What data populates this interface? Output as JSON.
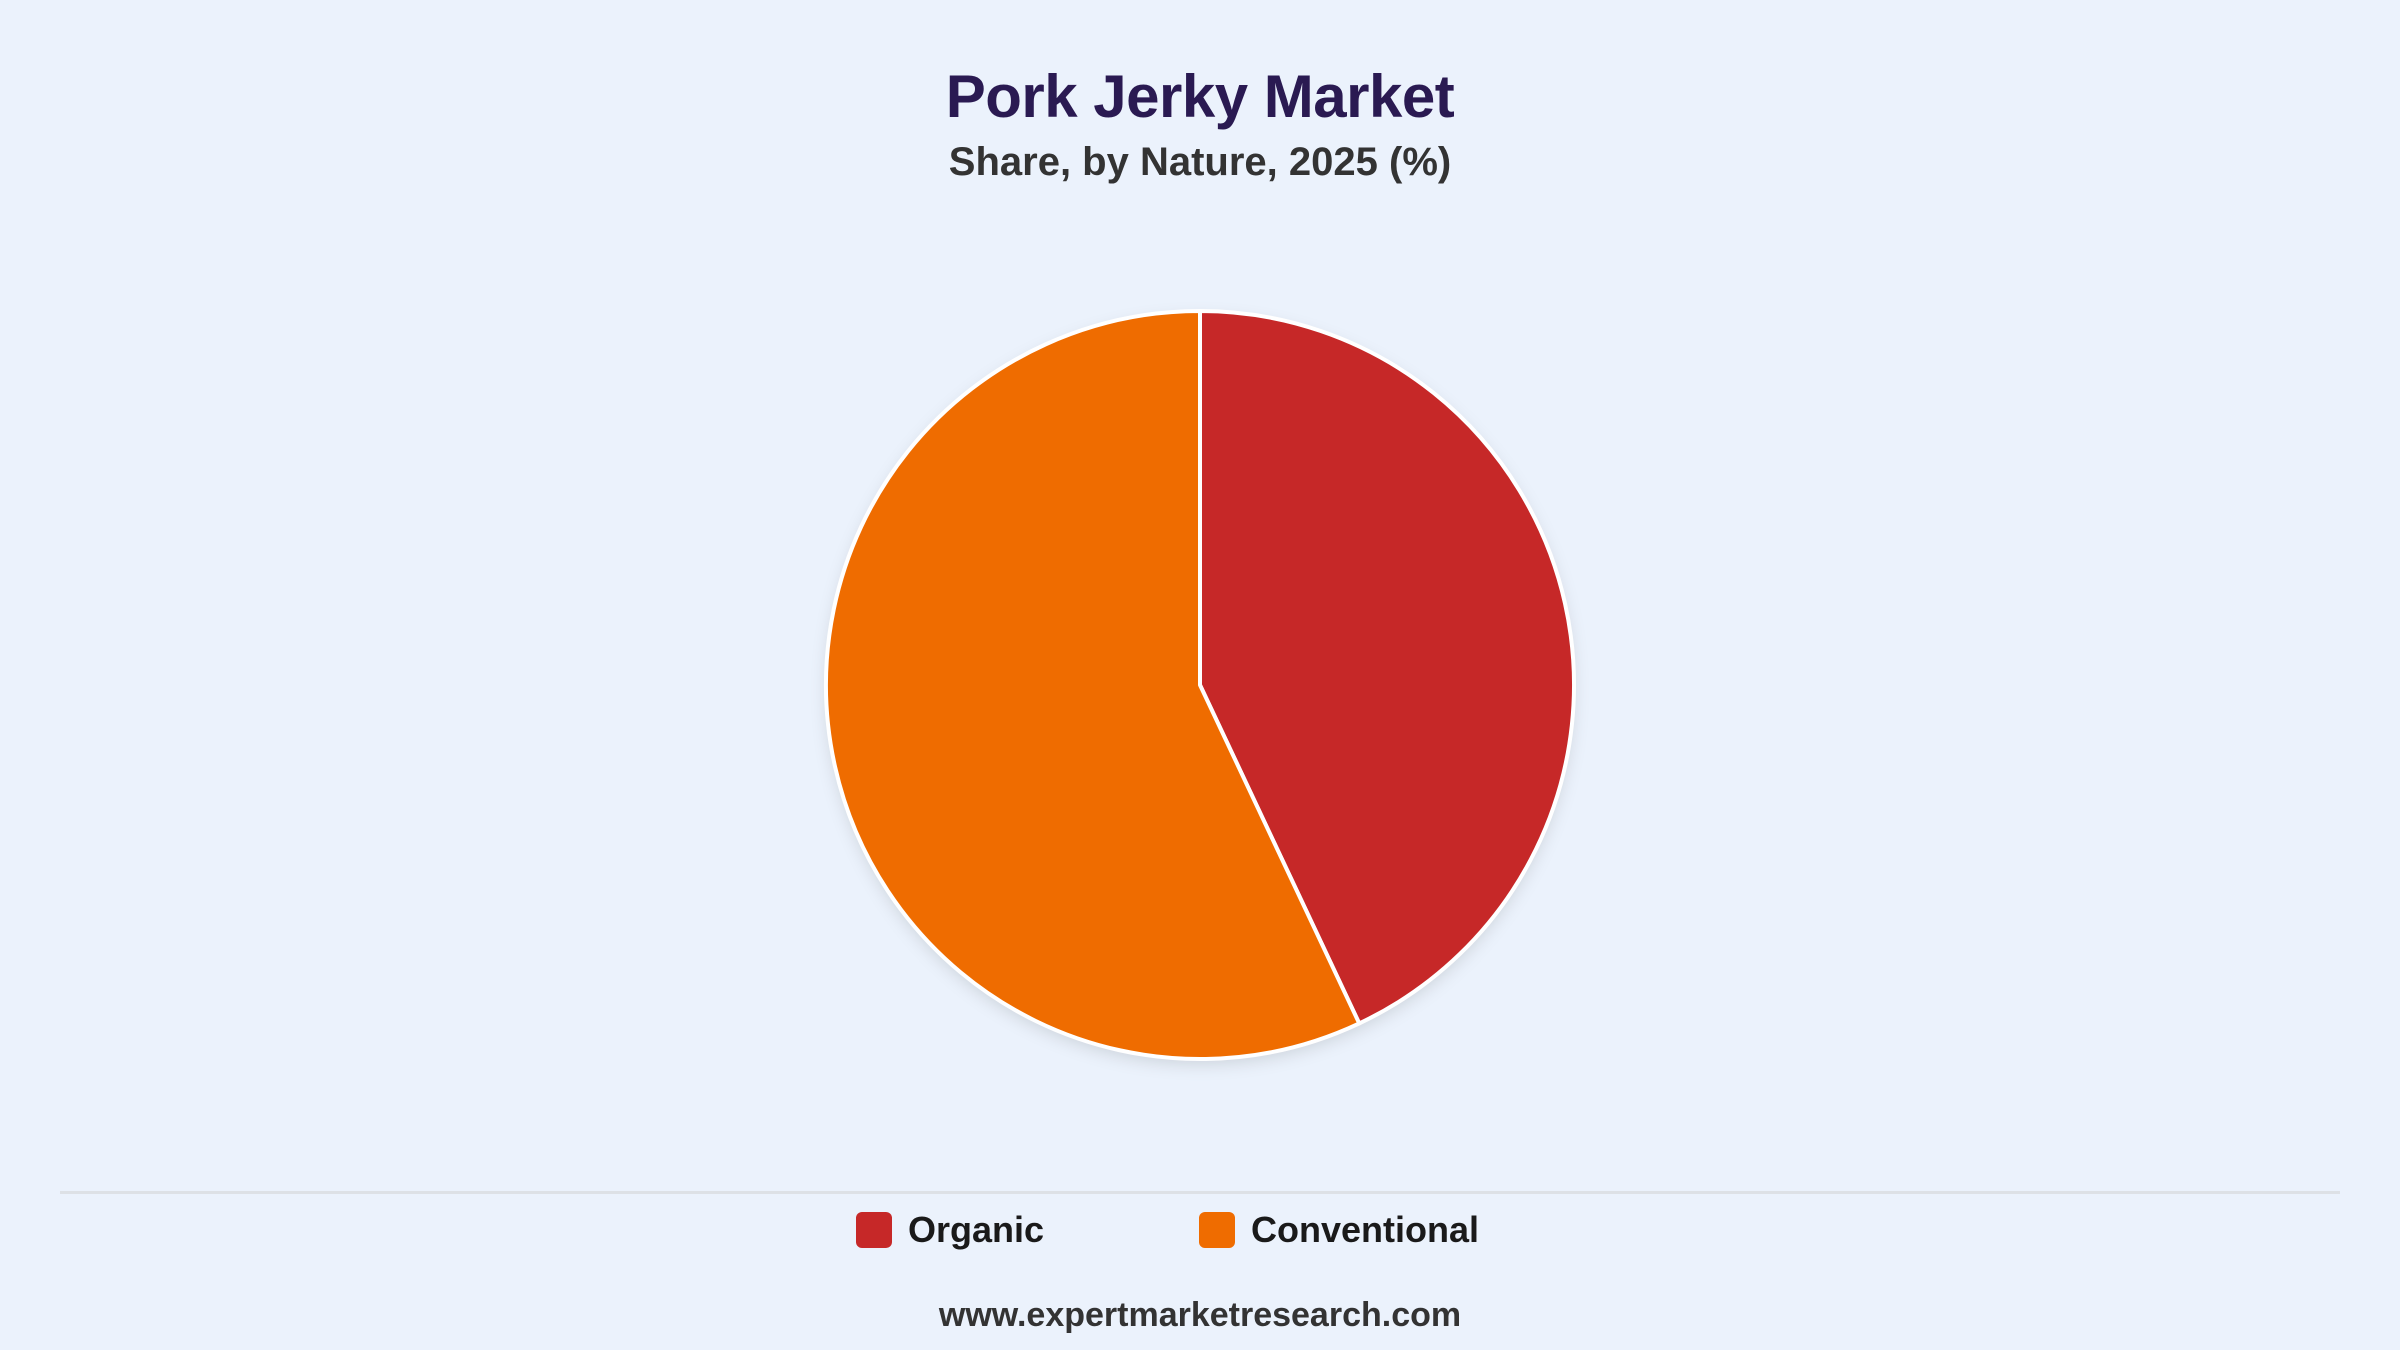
{
  "header": {
    "title": "Pork Jerky Market",
    "subtitle": "Share, by Nature, 2025 (%)"
  },
  "chart_data": {
    "type": "pie",
    "title": "Pork Jerky Market",
    "subtitle": "Share, by Nature, 2025 (%)",
    "categories": [
      "Organic",
      "Conventional"
    ],
    "values": [
      43,
      57
    ],
    "colors": [
      "#c62828",
      "#ef6c00"
    ],
    "start_angle": "12 o'clock",
    "direction": "clockwise",
    "slice_border_color": "#ffffff",
    "legend_placement": "bottom-center",
    "data_labels": false
  },
  "legend": {
    "items": [
      {
        "label": "Organic",
        "color": "#c62828"
      },
      {
        "label": "Conventional",
        "color": "#ef6c00"
      }
    ]
  },
  "footer": {
    "source": "www.expertmarketresearch.com"
  }
}
